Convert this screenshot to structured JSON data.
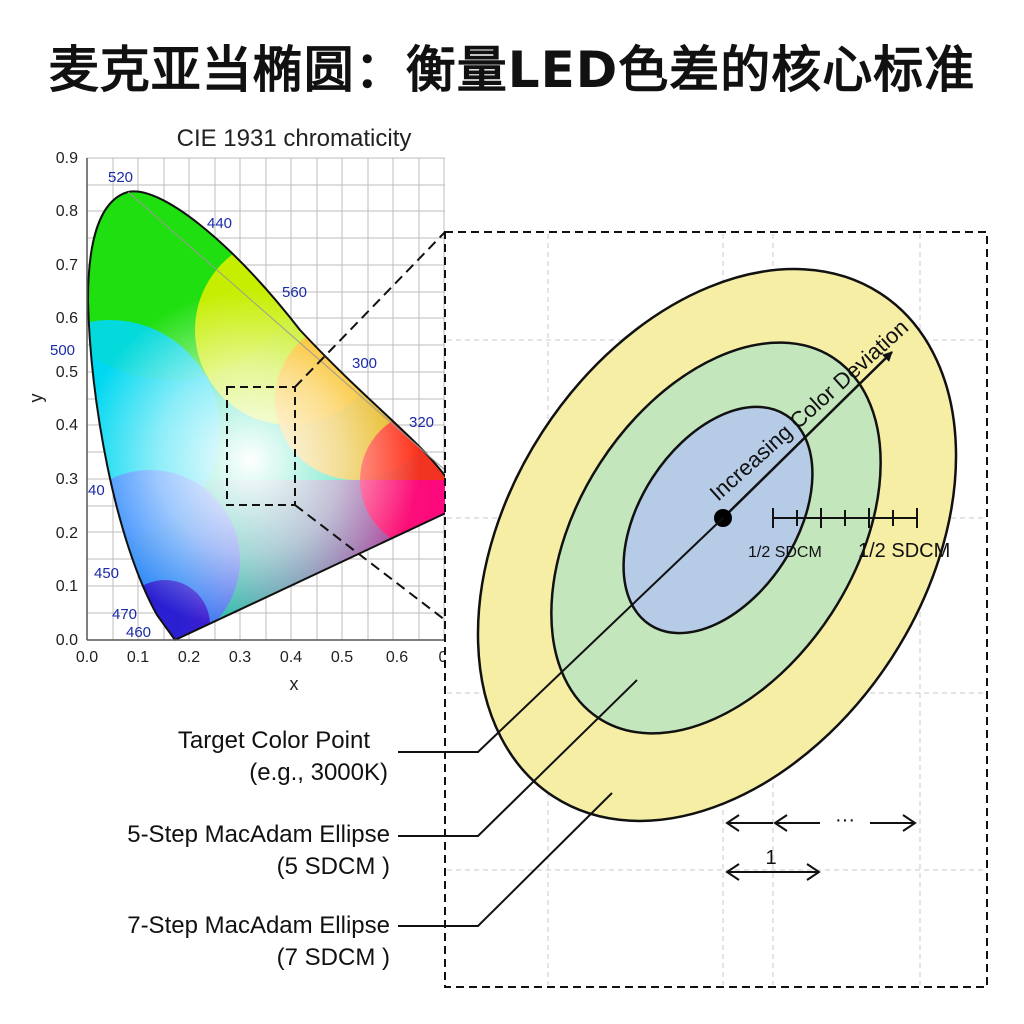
{
  "page": {
    "title": "麦克亚当椭圆：衡量LED色差的核心标准"
  },
  "cie_chart": {
    "title": "CIE 1931 chromaticity",
    "xlabel": "x",
    "ylabel": "y",
    "x_ticks": [
      "0.0",
      "0.1",
      "0.2",
      "0.3",
      "0.4",
      "0.5",
      "0.6",
      "0"
    ],
    "y_ticks": [
      "0.0",
      "0.1",
      "0.2",
      "0.3",
      "0.4",
      "0.5",
      "0.6",
      "0.7",
      "0.8",
      "0.9"
    ],
    "wavelength_labels": [
      "520",
      "440",
      "560",
      "300",
      "320",
      "500",
      "40",
      "450",
      "470",
      "460"
    ]
  },
  "detail": {
    "arrow_label": "Increasing Color Deviation",
    "half_sdcm_inner": "1/2 SDCM",
    "half_sdcm_outer": "1/2 SDCM",
    "ellipsis": "···",
    "unit_label": "1"
  },
  "callouts": {
    "target_line1": "Target Color Point",
    "target_line2": "(e.g., 3000K)",
    "five_line1": "5-Step MacAdam Ellipse",
    "five_line2": "(5 SDCM )",
    "seven_line1": "7-Step MacAdam Ellipse",
    "seven_line2": "(7 SDCM )"
  },
  "colors": {
    "ellipse_outer": "#f7eea6",
    "ellipse_middle": "#c4e6bd",
    "ellipse_inner": "#b5cbe6",
    "wavelength_text": "#1a2aa8"
  }
}
